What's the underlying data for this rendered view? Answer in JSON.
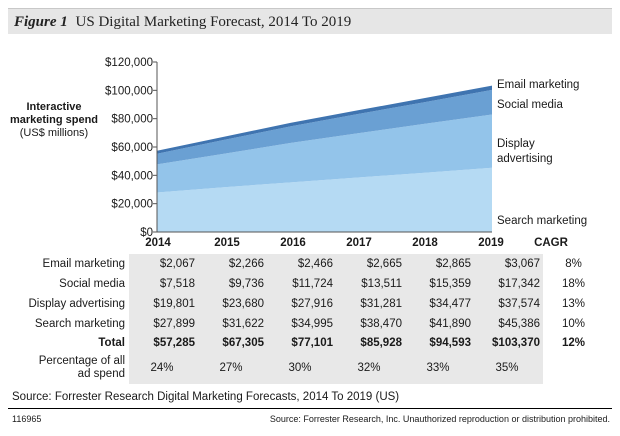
{
  "figure": {
    "label": "Figure 1",
    "title": "US Digital Marketing Forecast, 2014 To 2019"
  },
  "chart_data": {
    "type": "area",
    "stacked": true,
    "title": "US Digital Marketing Forecast, 2014 To 2019",
    "ylabel_bold": "Interactive marketing spend",
    "ylabel_unit": "(US$ millions)",
    "x": [
      2014,
      2015,
      2016,
      2017,
      2018,
      2019
    ],
    "ylim": [
      0,
      120000
    ],
    "yticks": [
      "$0",
      "$20,000",
      "$40,000",
      "$60,000",
      "$80,000",
      "$100,000",
      "$120,000"
    ],
    "grid": false,
    "series": [
      {
        "name": "Search marketing",
        "values": [
          27899,
          31622,
          34995,
          38470,
          41890,
          45386
        ],
        "color": "#b5daf3"
      },
      {
        "name": "Display advertising",
        "values": [
          19801,
          23680,
          27916,
          31281,
          34477,
          37574
        ],
        "color": "#93c4ea"
      },
      {
        "name": "Social media",
        "values": [
          7518,
          9736,
          11724,
          13511,
          15359,
          17342
        ],
        "color": "#6aa0d3"
      },
      {
        "name": "Email marketing",
        "values": [
          2067,
          2266,
          2466,
          2665,
          2865,
          3067
        ],
        "color": "#3f74b0"
      }
    ],
    "series_labels": {
      "email": "Email marketing",
      "social": "Social media",
      "display_1": "Display",
      "display_2": "advertising",
      "search": "Search marketing"
    }
  },
  "table": {
    "years": [
      "2014",
      "2015",
      "2016",
      "2017",
      "2018",
      "2019"
    ],
    "cagr_header": "CAGR",
    "rows": [
      {
        "label": "Email marketing",
        "values": [
          "$2,067",
          "$2,266",
          "$2,466",
          "$2,665",
          "$2,865",
          "$3,067"
        ],
        "cagr": "8%"
      },
      {
        "label": "Social media",
        "values": [
          "$7,518",
          "$9,736",
          "$11,724",
          "$13,511",
          "$15,359",
          "$17,342"
        ],
        "cagr": "18%"
      },
      {
        "label": "Display advertising",
        "values": [
          "$19,801",
          "$23,680",
          "$27,916",
          "$31,281",
          "$34,477",
          "$37,574"
        ],
        "cagr": "13%"
      },
      {
        "label": "Search marketing",
        "values": [
          "$27,899",
          "$31,622",
          "$34,995",
          "$38,470",
          "$41,890",
          "$45,386"
        ],
        "cagr": "10%"
      },
      {
        "label": "Total",
        "values": [
          "$57,285",
          "$67,305",
          "$77,101",
          "$85,928",
          "$94,593",
          "$103,370"
        ],
        "cagr": "12%"
      }
    ],
    "pct": {
      "label_1": "Percentage of all",
      "label_2": "ad spend",
      "values": [
        "24%",
        "27%",
        "30%",
        "32%",
        "33%",
        "35%"
      ]
    }
  },
  "source": "Source: Forrester Research Digital Marketing Forecasts, 2014 To 2019 (US)",
  "footer": {
    "id": "116965",
    "notice": "Source: Forrester Research, Inc. Unauthorized reproduction or distribution prohibited."
  }
}
